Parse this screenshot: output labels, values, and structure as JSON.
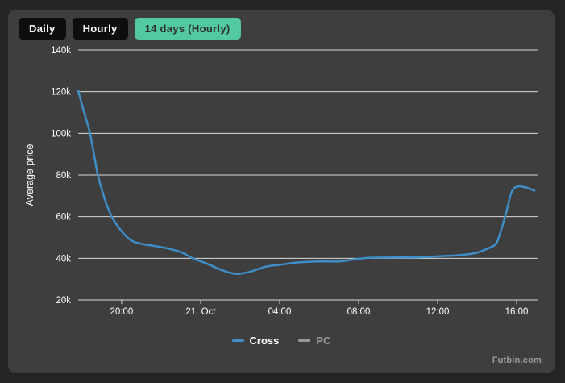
{
  "window": {
    "bg_color": "#242424",
    "card_bg_color": "#3e3e3e"
  },
  "toolbar": {
    "active_bg": "#52c9a2",
    "active_text": "#2f2f2f",
    "inactive_bg": "#0d0d0d",
    "inactive_text": "#ffffff",
    "buttons": [
      {
        "label": "Daily",
        "active": false
      },
      {
        "label": "Hourly",
        "active": false
      },
      {
        "label": "14 days (Hourly)",
        "active": true
      }
    ]
  },
  "watermark": "Futbin.com",
  "chart_data": {
    "type": "line",
    "title": "",
    "xlabel": "",
    "ylabel": "Average price",
    "grid": true,
    "grid_color": "#d9d9d9",
    "tick_label_color": "#ffffff",
    "legend_position": "bottom",
    "x_axis": {
      "unit": "time",
      "range_hours_from_20_00": [
        -2.2,
        21.1
      ],
      "ticks": [
        {
          "t": 0,
          "label": "20:00"
        },
        {
          "t": 4,
          "label": "21. Oct"
        },
        {
          "t": 8,
          "label": "04:00"
        },
        {
          "t": 12,
          "label": "08:00"
        },
        {
          "t": 16,
          "label": "12:00"
        },
        {
          "t": 20,
          "label": "16:00"
        }
      ]
    },
    "y_axis": {
      "unit": "coins",
      "range": [
        20000,
        140000
      ],
      "ticks": [
        {
          "v": 20000,
          "label": "20k"
        },
        {
          "v": 40000,
          "label": "40k"
        },
        {
          "v": 60000,
          "label": "60k"
        },
        {
          "v": 80000,
          "label": "80k"
        },
        {
          "v": 100000,
          "label": "100k"
        },
        {
          "v": 120000,
          "label": "120k"
        },
        {
          "v": 140000,
          "label": "140k"
        }
      ]
    },
    "legend": [
      {
        "name": "Cross",
        "color": "#3d8ec9",
        "active": true
      },
      {
        "name": "PC",
        "color": "#999999",
        "active": false
      }
    ],
    "series": [
      {
        "name": "Cross",
        "color": "#3d8ec9",
        "points_hours_value": [
          [
            -2.2,
            120500
          ],
          [
            -1.9,
            110000
          ],
          [
            -1.6,
            100000
          ],
          [
            -1.2,
            80000
          ],
          [
            -0.8,
            67000
          ],
          [
            -0.5,
            60000
          ],
          [
            0,
            53000
          ],
          [
            0.5,
            48500
          ],
          [
            1.0,
            47000
          ],
          [
            1.6,
            46000
          ],
          [
            2.2,
            45000
          ],
          [
            3.0,
            43000
          ],
          [
            3.6,
            40000
          ],
          [
            4.3,
            37500
          ],
          [
            4.9,
            35000
          ],
          [
            5.5,
            33000
          ],
          [
            5.9,
            32500
          ],
          [
            6.5,
            33500
          ],
          [
            7.3,
            36000
          ],
          [
            8.1,
            37000
          ],
          [
            8.9,
            38000
          ],
          [
            10.0,
            38500
          ],
          [
            11.0,
            38500
          ],
          [
            11.8,
            39500
          ],
          [
            12.6,
            40300
          ],
          [
            13.8,
            40400
          ],
          [
            15.1,
            40500
          ],
          [
            16.1,
            41000
          ],
          [
            17.1,
            41500
          ],
          [
            17.9,
            42500
          ],
          [
            18.5,
            44500
          ],
          [
            18.95,
            47000
          ],
          [
            19.2,
            53000
          ],
          [
            19.5,
            63000
          ],
          [
            19.75,
            72000
          ],
          [
            20.05,
            74500
          ],
          [
            20.45,
            74000
          ],
          [
            20.9,
            72500
          ]
        ]
      },
      {
        "name": "PC",
        "color": "#999999",
        "points_hours_value": []
      }
    ]
  }
}
